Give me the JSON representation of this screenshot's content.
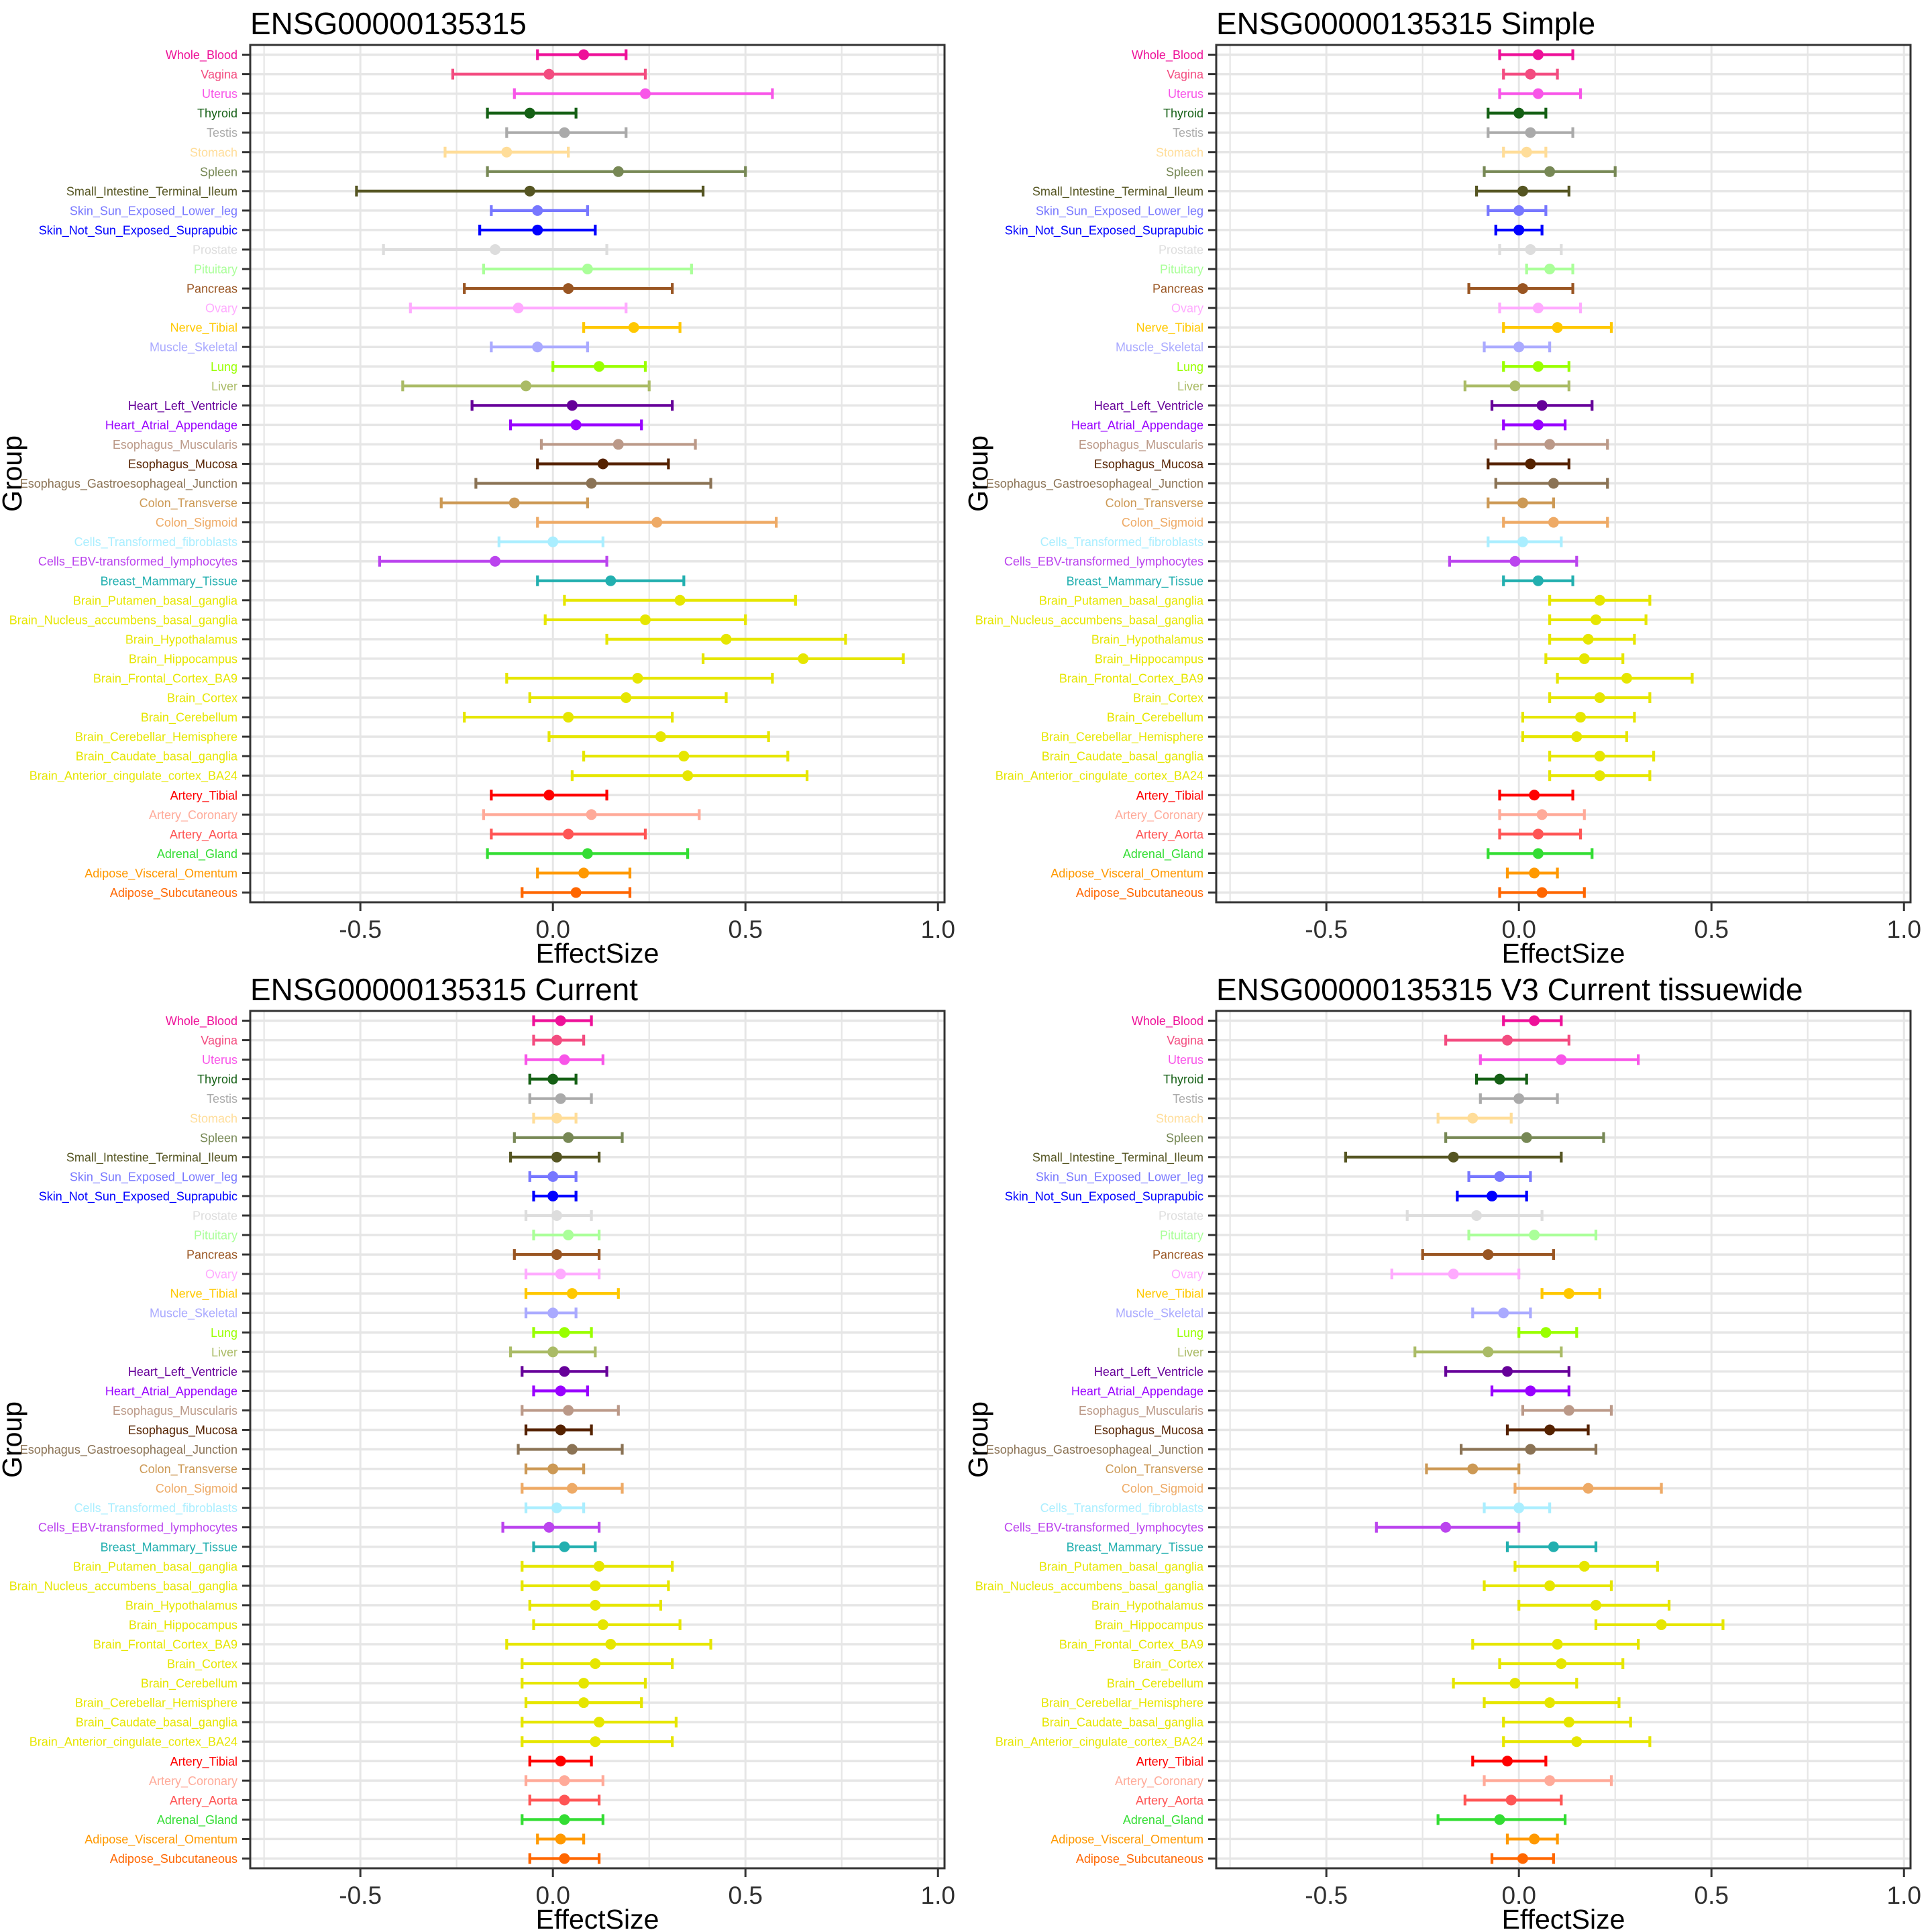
{
  "chart_data": {
    "type": "scatter",
    "subtype": "forest-plot-effect-size-ci",
    "xlabel": "EffectSize",
    "ylabel": "Group",
    "xlim": [
      -0.786,
      1.017
    ],
    "grid": true,
    "x_ticks": [
      {
        "v": -0.5,
        "label": "-0.5"
      },
      {
        "v": 0.0,
        "label": "0.0"
      },
      {
        "v": 0.5,
        "label": "0.5"
      },
      {
        "v": 1.0,
        "label": "1.0"
      }
    ],
    "x_minor_ticks": [
      -0.75,
      -0.25,
      0.25,
      0.75
    ],
    "categories": [
      {
        "name": "Whole_Blood",
        "color": "#EE1199"
      },
      {
        "name": "Vagina",
        "color": "#F34C80"
      },
      {
        "name": "Uterus",
        "color": "#F855E8"
      },
      {
        "name": "Thyroid",
        "color": "#156015"
      },
      {
        "name": "Testis",
        "color": "#AAAAAA"
      },
      {
        "name": "Stomach",
        "color": "#FFDD99"
      },
      {
        "name": "Spleen",
        "color": "#778855"
      },
      {
        "name": "Small_Intestine_Terminal_Ileum",
        "color": "#555522"
      },
      {
        "name": "Skin_Sun_Exposed_Lower_leg",
        "color": "#7777FF"
      },
      {
        "name": "Skin_Not_Sun_Exposed_Suprapubic",
        "color": "#0000FF"
      },
      {
        "name": "Prostate",
        "color": "#DDDDDD"
      },
      {
        "name": "Pituitary",
        "color": "#AAFF99"
      },
      {
        "name": "Pancreas",
        "color": "#995522"
      },
      {
        "name": "Ovary",
        "color": "#FFAAFF"
      },
      {
        "name": "Nerve_Tibial",
        "color": "#FFC800"
      },
      {
        "name": "Muscle_Skeletal",
        "color": "#AAAAFF"
      },
      {
        "name": "Lung",
        "color": "#99FF00"
      },
      {
        "name": "Liver",
        "color": "#AABB66"
      },
      {
        "name": "Heart_Left_Ventricle",
        "color": "#660099"
      },
      {
        "name": "Heart_Atrial_Appendage",
        "color": "#9900FF"
      },
      {
        "name": "Esophagus_Muscularis",
        "color": "#BB9988"
      },
      {
        "name": "Esophagus_Mucosa",
        "color": "#552200"
      },
      {
        "name": "Esophagus_Gastroesophageal_Junction",
        "color": "#8B7355"
      },
      {
        "name": "Colon_Transverse",
        "color": "#CC9955"
      },
      {
        "name": "Colon_Sigmoid",
        "color": "#EEAA66"
      },
      {
        "name": "Cells_Transformed_fibroblasts",
        "color": "#AAEEFF"
      },
      {
        "name": "Cells_EBV-transformed_lymphocytes",
        "color": "#BB44EE"
      },
      {
        "name": "Breast_Mammary_Tissue",
        "color": "#22AFAF"
      },
      {
        "name": "Brain_Putamen_basal_ganglia",
        "color": "#E6E600"
      },
      {
        "name": "Brain_Nucleus_accumbens_basal_ganglia",
        "color": "#E6E600"
      },
      {
        "name": "Brain_Hypothalamus",
        "color": "#E6E600"
      },
      {
        "name": "Brain_Hippocampus",
        "color": "#E6E600"
      },
      {
        "name": "Brain_Frontal_Cortex_BA9",
        "color": "#E6E600"
      },
      {
        "name": "Brain_Cortex",
        "color": "#E6E600"
      },
      {
        "name": "Brain_Cerebellum",
        "color": "#E6E600"
      },
      {
        "name": "Brain_Cerebellar_Hemisphere",
        "color": "#E6E600"
      },
      {
        "name": "Brain_Caudate_basal_ganglia",
        "color": "#E6E600"
      },
      {
        "name": "Brain_Anterior_cingulate_cortex_BA24",
        "color": "#E6E600"
      },
      {
        "name": "Artery_Tibial",
        "color": "#FF0000"
      },
      {
        "name": "Artery_Coronary",
        "color": "#FFAA99"
      },
      {
        "name": "Artery_Aorta",
        "color": "#FF5555"
      },
      {
        "name": "Adrenal_Gland",
        "color": "#33DD33"
      },
      {
        "name": "Adipose_Visceral_Omentum",
        "color": "#FF9900"
      },
      {
        "name": "Adipose_Subcutaneous",
        "color": "#FF6600"
      }
    ],
    "panels": [
      {
        "title": "ENSG00000135315",
        "estimates": [
          [
            0.08,
            -0.04,
            0.19
          ],
          [
            -0.01,
            -0.26,
            0.24
          ],
          [
            0.24,
            -0.1,
            0.57
          ],
          [
            -0.06,
            -0.17,
            0.06
          ],
          [
            0.03,
            -0.12,
            0.19
          ],
          [
            -0.12,
            -0.28,
            0.04
          ],
          [
            0.17,
            -0.17,
            0.5
          ],
          [
            -0.06,
            -0.51,
            0.39
          ],
          [
            -0.04,
            -0.16,
            0.09
          ],
          [
            -0.04,
            -0.19,
            0.11
          ],
          [
            -0.15,
            -0.44,
            0.14
          ],
          [
            0.09,
            -0.18,
            0.36
          ],
          [
            0.04,
            -0.23,
            0.31
          ],
          [
            -0.09,
            -0.37,
            0.19
          ],
          [
            0.21,
            0.08,
            0.33
          ],
          [
            -0.04,
            -0.16,
            0.09
          ],
          [
            0.12,
            0.0,
            0.24
          ],
          [
            -0.07,
            -0.39,
            0.25
          ],
          [
            0.05,
            -0.21,
            0.31
          ],
          [
            0.06,
            -0.11,
            0.23
          ],
          [
            0.17,
            -0.03,
            0.37
          ],
          [
            0.13,
            -0.04,
            0.3
          ],
          [
            0.1,
            -0.2,
            0.41
          ],
          [
            -0.1,
            -0.29,
            0.09
          ],
          [
            0.27,
            -0.04,
            0.58
          ],
          [
            0.0,
            -0.14,
            0.13
          ],
          [
            -0.15,
            -0.45,
            0.14
          ],
          [
            0.15,
            -0.04,
            0.34
          ],
          [
            0.33,
            0.03,
            0.63
          ],
          [
            0.24,
            -0.02,
            0.5
          ],
          [
            0.45,
            0.14,
            0.76
          ],
          [
            0.65,
            0.39,
            0.91
          ],
          [
            0.22,
            -0.12,
            0.57
          ],
          [
            0.19,
            -0.06,
            0.45
          ],
          [
            0.04,
            -0.23,
            0.31
          ],
          [
            0.28,
            -0.01,
            0.56
          ],
          [
            0.34,
            0.08,
            0.61
          ],
          [
            0.35,
            0.05,
            0.66
          ],
          [
            -0.01,
            -0.16,
            0.14
          ],
          [
            0.1,
            -0.18,
            0.38
          ],
          [
            0.04,
            -0.16,
            0.24
          ],
          [
            0.09,
            -0.17,
            0.35
          ],
          [
            0.08,
            -0.04,
            0.2
          ],
          [
            0.06,
            -0.08,
            0.2
          ]
        ]
      },
      {
        "title": "ENSG00000135315 Simple",
        "estimates": [
          [
            0.05,
            -0.05,
            0.14
          ],
          [
            0.03,
            -0.04,
            0.1
          ],
          [
            0.05,
            -0.05,
            0.16
          ],
          [
            0.0,
            -0.08,
            0.07
          ],
          [
            0.03,
            -0.08,
            0.14
          ],
          [
            0.02,
            -0.04,
            0.07
          ],
          [
            0.08,
            -0.09,
            0.25
          ],
          [
            0.01,
            -0.11,
            0.13
          ],
          [
            0.0,
            -0.08,
            0.07
          ],
          [
            0.0,
            -0.06,
            0.06
          ],
          [
            0.03,
            -0.05,
            0.11
          ],
          [
            0.08,
            0.02,
            0.14
          ],
          [
            0.01,
            -0.13,
            0.14
          ],
          [
            0.05,
            -0.05,
            0.16
          ],
          [
            0.1,
            -0.04,
            0.24
          ],
          [
            0.0,
            -0.09,
            0.08
          ],
          [
            0.05,
            -0.04,
            0.13
          ],
          [
            -0.01,
            -0.14,
            0.13
          ],
          [
            0.06,
            -0.07,
            0.19
          ],
          [
            0.05,
            -0.04,
            0.12
          ],
          [
            0.08,
            -0.06,
            0.23
          ],
          [
            0.03,
            -0.08,
            0.13
          ],
          [
            0.09,
            -0.06,
            0.23
          ],
          [
            0.01,
            -0.08,
            0.09
          ],
          [
            0.09,
            -0.04,
            0.23
          ],
          [
            0.01,
            -0.08,
            0.11
          ],
          [
            -0.01,
            -0.18,
            0.15
          ],
          [
            0.05,
            -0.04,
            0.14
          ],
          [
            0.21,
            0.08,
            0.34
          ],
          [
            0.2,
            0.08,
            0.33
          ],
          [
            0.18,
            0.08,
            0.3
          ],
          [
            0.17,
            0.07,
            0.27
          ],
          [
            0.28,
            0.1,
            0.45
          ],
          [
            0.21,
            0.08,
            0.34
          ],
          [
            0.16,
            0.01,
            0.3
          ],
          [
            0.15,
            0.01,
            0.28
          ],
          [
            0.21,
            0.08,
            0.35
          ],
          [
            0.21,
            0.08,
            0.34
          ],
          [
            0.04,
            -0.05,
            0.14
          ],
          [
            0.06,
            -0.05,
            0.17
          ],
          [
            0.05,
            -0.05,
            0.16
          ],
          [
            0.05,
            -0.08,
            0.19
          ],
          [
            0.04,
            -0.03,
            0.1
          ],
          [
            0.06,
            -0.05,
            0.17
          ]
        ]
      },
      {
        "title": "ENSG00000135315 Current",
        "estimates": [
          [
            0.02,
            -0.05,
            0.1
          ],
          [
            0.01,
            -0.05,
            0.08
          ],
          [
            0.03,
            -0.07,
            0.13
          ],
          [
            0.0,
            -0.06,
            0.06
          ],
          [
            0.02,
            -0.06,
            0.1
          ],
          [
            0.01,
            -0.05,
            0.06
          ],
          [
            0.04,
            -0.1,
            0.18
          ],
          [
            0.01,
            -0.11,
            0.12
          ],
          [
            0.0,
            -0.06,
            0.06
          ],
          [
            0.0,
            -0.05,
            0.06
          ],
          [
            0.01,
            -0.07,
            0.1
          ],
          [
            0.04,
            -0.05,
            0.12
          ],
          [
            0.01,
            -0.1,
            0.12
          ],
          [
            0.02,
            -0.07,
            0.12
          ],
          [
            0.05,
            -0.07,
            0.17
          ],
          [
            0.0,
            -0.07,
            0.06
          ],
          [
            0.03,
            -0.05,
            0.1
          ],
          [
            0.0,
            -0.11,
            0.11
          ],
          [
            0.03,
            -0.08,
            0.14
          ],
          [
            0.02,
            -0.05,
            0.09
          ],
          [
            0.04,
            -0.08,
            0.17
          ],
          [
            0.02,
            -0.07,
            0.1
          ],
          [
            0.05,
            -0.09,
            0.18
          ],
          [
            0.0,
            -0.07,
            0.08
          ],
          [
            0.05,
            -0.08,
            0.18
          ],
          [
            0.01,
            -0.07,
            0.08
          ],
          [
            -0.01,
            -0.13,
            0.12
          ],
          [
            0.03,
            -0.05,
            0.11
          ],
          [
            0.12,
            -0.08,
            0.31
          ],
          [
            0.11,
            -0.08,
            0.3
          ],
          [
            0.11,
            -0.06,
            0.28
          ],
          [
            0.13,
            -0.05,
            0.33
          ],
          [
            0.15,
            -0.12,
            0.41
          ],
          [
            0.11,
            -0.08,
            0.31
          ],
          [
            0.08,
            -0.08,
            0.24
          ],
          [
            0.08,
            -0.07,
            0.23
          ],
          [
            0.12,
            -0.08,
            0.32
          ],
          [
            0.11,
            -0.08,
            0.31
          ],
          [
            0.02,
            -0.06,
            0.1
          ],
          [
            0.03,
            -0.07,
            0.13
          ],
          [
            0.03,
            -0.06,
            0.12
          ],
          [
            0.03,
            -0.08,
            0.13
          ],
          [
            0.02,
            -0.04,
            0.08
          ],
          [
            0.03,
            -0.06,
            0.12
          ]
        ]
      },
      {
        "title": "ENSG00000135315 V3 Current tissuewide",
        "estimates": [
          [
            0.04,
            -0.04,
            0.11
          ],
          [
            -0.03,
            -0.19,
            0.13
          ],
          [
            0.11,
            -0.1,
            0.31
          ],
          [
            -0.05,
            -0.11,
            0.02
          ],
          [
            0.0,
            -0.1,
            0.1
          ],
          [
            -0.12,
            -0.21,
            -0.02
          ],
          [
            0.02,
            -0.19,
            0.22
          ],
          [
            -0.17,
            -0.45,
            0.11
          ],
          [
            -0.05,
            -0.13,
            0.03
          ],
          [
            -0.07,
            -0.16,
            0.02
          ],
          [
            -0.11,
            -0.29,
            0.06
          ],
          [
            0.04,
            -0.13,
            0.2
          ],
          [
            -0.08,
            -0.25,
            0.09
          ],
          [
            -0.17,
            -0.33,
            0.0
          ],
          [
            0.13,
            0.06,
            0.21
          ],
          [
            -0.04,
            -0.12,
            0.03
          ],
          [
            0.07,
            0.0,
            0.15
          ],
          [
            -0.08,
            -0.27,
            0.11
          ],
          [
            -0.03,
            -0.19,
            0.13
          ],
          [
            0.03,
            -0.07,
            0.13
          ],
          [
            0.13,
            0.01,
            0.24
          ],
          [
            0.08,
            -0.03,
            0.18
          ],
          [
            0.03,
            -0.15,
            0.2
          ],
          [
            -0.12,
            -0.24,
            0.0
          ],
          [
            0.18,
            -0.01,
            0.37
          ],
          [
            0.0,
            -0.09,
            0.08
          ],
          [
            -0.19,
            -0.37,
            0.0
          ],
          [
            0.09,
            -0.03,
            0.2
          ],
          [
            0.17,
            -0.01,
            0.36
          ],
          [
            0.08,
            -0.09,
            0.24
          ],
          [
            0.2,
            0.0,
            0.39
          ],
          [
            0.37,
            0.2,
            0.53
          ],
          [
            0.1,
            -0.12,
            0.31
          ],
          [
            0.11,
            -0.05,
            0.27
          ],
          [
            -0.01,
            -0.17,
            0.15
          ],
          [
            0.08,
            -0.09,
            0.26
          ],
          [
            0.13,
            -0.04,
            0.29
          ],
          [
            0.15,
            -0.04,
            0.34
          ],
          [
            -0.03,
            -0.12,
            0.07
          ],
          [
            0.08,
            -0.09,
            0.24
          ],
          [
            -0.02,
            -0.14,
            0.11
          ],
          [
            -0.05,
            -0.21,
            0.12
          ],
          [
            0.04,
            -0.03,
            0.1
          ],
          [
            0.01,
            -0.07,
            0.09
          ]
        ]
      }
    ],
    "style": {
      "grid_color": "#E6E6E6",
      "border_color": "#333333",
      "tick_color": "#333333",
      "tick_label_color": "#303030",
      "axis_title_color": "#000000",
      "background": "#FFFFFF"
    }
  }
}
